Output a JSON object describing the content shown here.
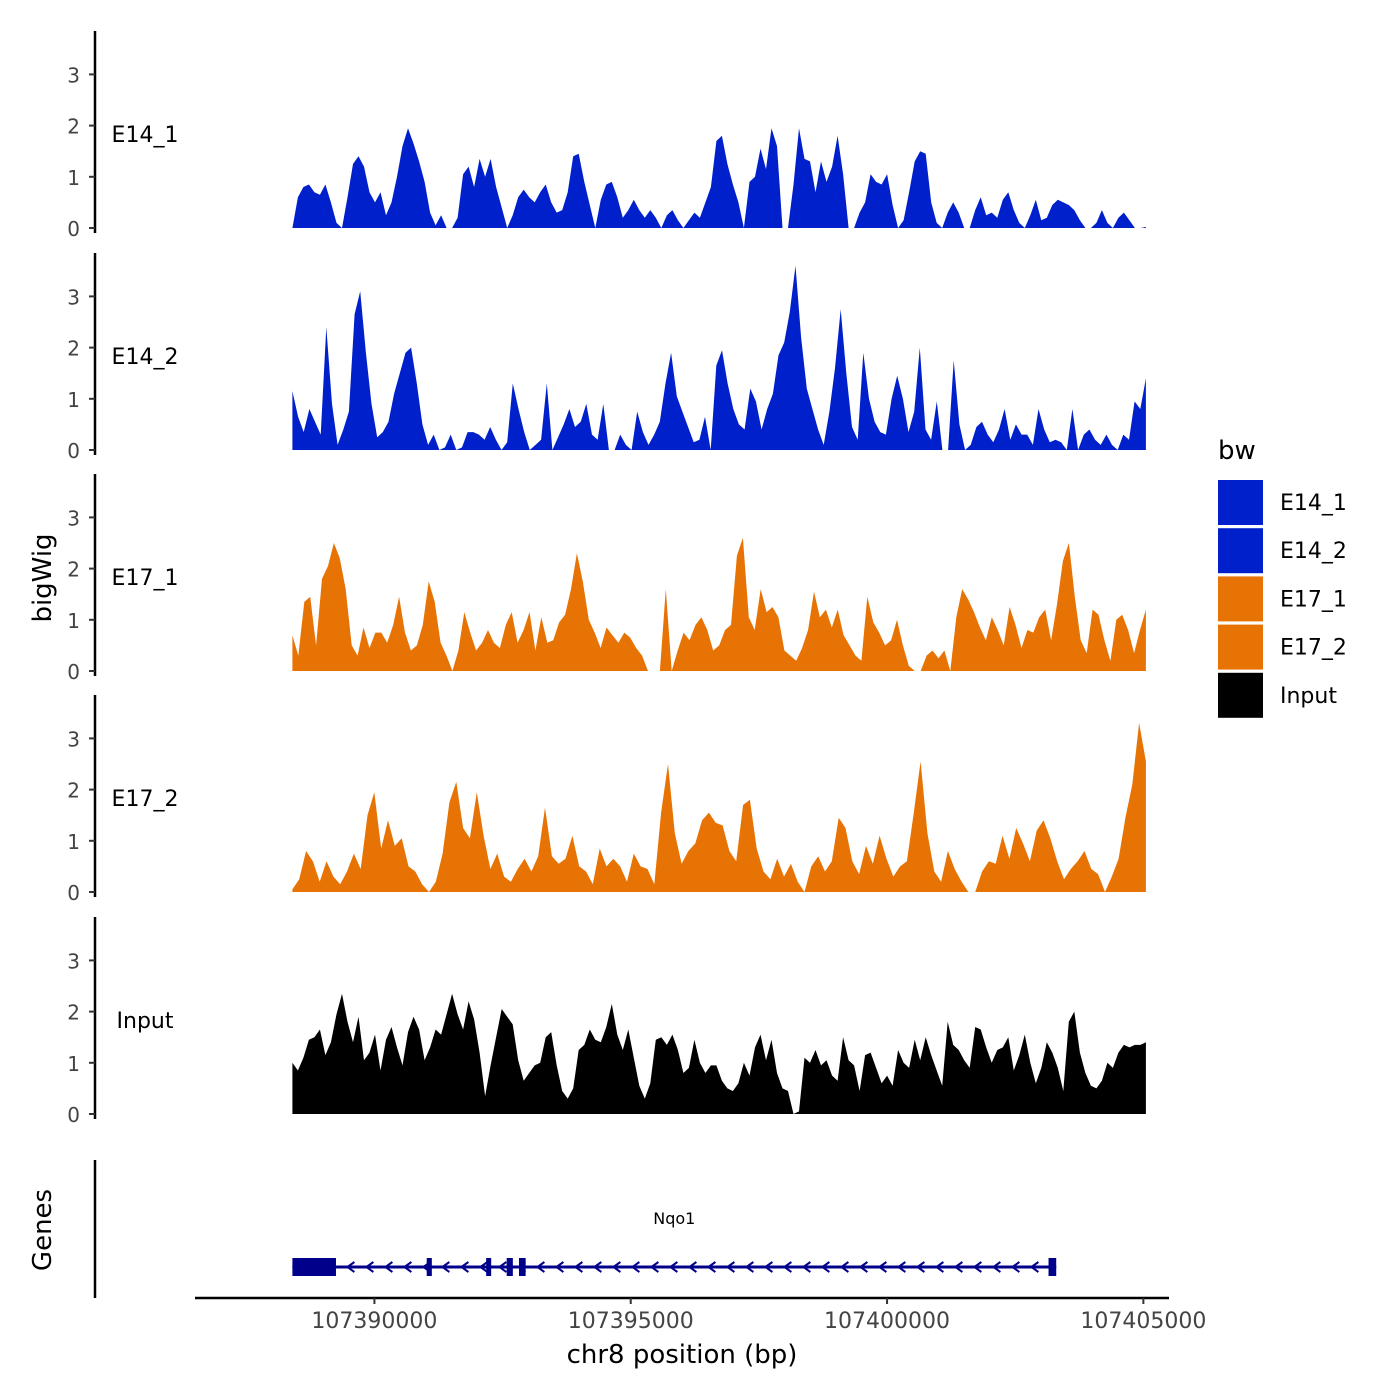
{
  "chart_data": {
    "type": "area",
    "chromosome": "chr8",
    "xlabel": "chr8 position (bp)",
    "ylabel": "bigWig",
    "genes_label": "Genes",
    "xlim": [
      107386500,
      107405500
    ],
    "ylim": [
      0,
      3.8
    ],
    "region": [
      107388400,
      107405050
    ],
    "x_ticks": [
      107390000,
      107395000,
      107400000,
      107405000
    ],
    "x_tick_labels": [
      "107390000",
      "107395000",
      "107400000",
      "107405000"
    ],
    "y_ticks": [
      0,
      1,
      2,
      3
    ],
    "y_tick_labels": [
      "0",
      "1",
      "2",
      "3"
    ],
    "legend": {
      "title": "bw",
      "position": "right",
      "entries": [
        {
          "label": "E14_1",
          "color": "#0020cc"
        },
        {
          "label": "E14_2",
          "color": "#0020cc"
        },
        {
          "label": "E17_1",
          "color": "#e87305"
        },
        {
          "label": "E17_2",
          "color": "#e87305"
        },
        {
          "label": "Input",
          "color": "#000000"
        }
      ]
    },
    "series": [
      {
        "name": "E14_1",
        "color": "#0020cc",
        "values": [
          0.0,
          0.6,
          0.8,
          0.85,
          0.7,
          0.65,
          0.85,
          0.5,
          0.1,
          0.0,
          0.6,
          1.25,
          1.4,
          1.2,
          0.7,
          0.5,
          0.7,
          0.25,
          0.5,
          1.0,
          1.6,
          1.95,
          1.65,
          1.3,
          0.9,
          0.3,
          0.05,
          0.25,
          0.0,
          0.0,
          0.2,
          1.05,
          1.2,
          0.8,
          1.35,
          1.0,
          1.35,
          0.8,
          0.4,
          0.0,
          0.25,
          0.6,
          0.75,
          0.6,
          0.5,
          0.7,
          0.85,
          0.5,
          0.3,
          0.35,
          0.7,
          1.4,
          1.45,
          0.9,
          0.45,
          0.0,
          0.55,
          0.85,
          0.9,
          0.6,
          0.2,
          0.35,
          0.55,
          0.35,
          0.2,
          0.35,
          0.2,
          0.0,
          0.25,
          0.35,
          0.15,
          0.0,
          0.15,
          0.3,
          0.2,
          0.5,
          0.8,
          1.7,
          1.8,
          1.25,
          0.85,
          0.5,
          0.0,
          0.9,
          1.0,
          1.55,
          1.15,
          1.95,
          1.6,
          0.0,
          0.0,
          0.85,
          1.95,
          1.35,
          1.3,
          0.7,
          1.3,
          0.9,
          1.2,
          1.8,
          1.05,
          0.0,
          0.0,
          0.3,
          0.5,
          1.05,
          0.9,
          0.85,
          1.05,
          0.45,
          0.0,
          0.15,
          0.7,
          1.3,
          1.5,
          1.45,
          0.5,
          0.1,
          0.0,
          0.3,
          0.5,
          0.3,
          0.0,
          0.0,
          0.35,
          0.6,
          0.25,
          0.3,
          0.2,
          0.55,
          0.7,
          0.35,
          0.1,
          0.0,
          0.25,
          0.55,
          0.15,
          0.2,
          0.45,
          0.55,
          0.5,
          0.45,
          0.35,
          0.15,
          0.0,
          0.0,
          0.1,
          0.35,
          0.1,
          0.0,
          0.2,
          0.3,
          0.15,
          0.0,
          0.0,
          0.02
        ]
      },
      {
        "name": "E14_2",
        "color": "#0020cc",
        "values": [
          1.15,
          0.65,
          0.35,
          0.8,
          0.55,
          0.3,
          2.4,
          0.9,
          0.1,
          0.4,
          0.75,
          2.65,
          3.1,
          1.9,
          0.9,
          0.25,
          0.35,
          0.55,
          1.1,
          1.5,
          1.9,
          2.0,
          1.3,
          0.5,
          0.1,
          0.3,
          0.0,
          0.05,
          0.3,
          0.0,
          0.05,
          0.35,
          0.35,
          0.3,
          0.2,
          0.45,
          0.2,
          0.0,
          0.15,
          1.3,
          0.8,
          0.35,
          0.0,
          0.1,
          0.2,
          1.3,
          0.0,
          0.25,
          0.5,
          0.8,
          0.45,
          0.55,
          0.9,
          0.3,
          0.2,
          0.9,
          0.0,
          0.0,
          0.3,
          0.1,
          0.0,
          0.75,
          0.35,
          0.1,
          0.3,
          0.55,
          1.3,
          1.9,
          1.05,
          0.75,
          0.45,
          0.15,
          0.2,
          0.65,
          0.0,
          1.65,
          1.95,
          1.3,
          0.8,
          0.5,
          0.4,
          1.2,
          0.95,
          0.4,
          0.8,
          1.1,
          1.85,
          2.1,
          2.7,
          3.6,
          2.2,
          1.2,
          0.8,
          0.4,
          0.1,
          0.75,
          1.6,
          2.75,
          1.5,
          0.45,
          0.2,
          1.9,
          1.0,
          0.55,
          0.35,
          0.3,
          1.0,
          1.45,
          1.0,
          0.35,
          0.75,
          2.0,
          0.4,
          0.2,
          0.95,
          0.0,
          0.0,
          1.75,
          0.5,
          0.0,
          0.1,
          0.45,
          0.55,
          0.3,
          0.15,
          0.4,
          0.8,
          0.2,
          0.5,
          0.3,
          0.3,
          0.1,
          0.8,
          0.4,
          0.15,
          0.2,
          0.15,
          0.0,
          0.8,
          0.0,
          0.3,
          0.4,
          0.2,
          0.1,
          0.3,
          0.1,
          0.0,
          0.3,
          0.2,
          0.95,
          0.8,
          1.4
        ]
      },
      {
        "name": "E17_1",
        "color": "#e87305",
        "values": [
          0.7,
          0.3,
          1.35,
          1.45,
          0.5,
          1.8,
          2.05,
          2.5,
          2.2,
          1.6,
          0.5,
          0.3,
          0.85,
          0.45,
          0.75,
          0.75,
          0.55,
          0.9,
          1.45,
          0.75,
          0.4,
          0.5,
          0.9,
          1.75,
          1.35,
          0.55,
          0.3,
          0.0,
          0.4,
          1.15,
          0.75,
          0.4,
          0.55,
          0.8,
          0.55,
          0.45,
          0.9,
          1.15,
          0.55,
          0.8,
          1.15,
          0.4,
          1.05,
          0.55,
          0.6,
          0.95,
          1.1,
          1.6,
          2.3,
          1.75,
          1.0,
          0.75,
          0.45,
          0.85,
          0.7,
          0.55,
          0.75,
          0.65,
          0.45,
          0.3,
          0.0,
          0.0,
          0.0,
          1.6,
          0.0,
          0.4,
          0.75,
          0.6,
          0.9,
          1.05,
          0.8,
          0.4,
          0.5,
          0.8,
          0.9,
          2.25,
          2.6,
          1.05,
          0.8,
          1.6,
          1.15,
          1.25,
          1.05,
          0.4,
          0.3,
          0.2,
          0.45,
          0.8,
          1.55,
          1.05,
          1.2,
          0.85,
          1.2,
          0.7,
          0.5,
          0.3,
          0.2,
          1.45,
          0.95,
          0.75,
          0.5,
          0.6,
          1.0,
          0.5,
          0.1,
          0.0,
          0.0,
          0.3,
          0.4,
          0.25,
          0.4,
          0.0,
          1.05,
          1.6,
          1.4,
          1.15,
          0.85,
          0.6,
          1.05,
          0.8,
          0.5,
          1.25,
          0.9,
          0.45,
          0.8,
          0.75,
          1.05,
          1.2,
          0.6,
          1.3,
          2.15,
          2.5,
          1.45,
          0.6,
          0.35,
          1.2,
          1.1,
          0.6,
          0.2,
          1.0,
          1.1,
          0.8,
          0.35,
          0.8,
          1.2
        ]
      },
      {
        "name": "E17_2",
        "color": "#e87305",
        "values": [
          0.05,
          0.25,
          0.8,
          0.6,
          0.2,
          0.6,
          0.3,
          0.15,
          0.4,
          0.75,
          0.45,
          1.5,
          1.95,
          0.85,
          1.4,
          0.9,
          1.05,
          0.5,
          0.4,
          0.15,
          0.0,
          0.2,
          0.75,
          1.75,
          2.15,
          1.25,
          1.05,
          1.95,
          1.1,
          0.45,
          0.75,
          0.3,
          0.2,
          0.45,
          0.65,
          0.4,
          0.7,
          1.65,
          0.7,
          0.55,
          0.65,
          1.1,
          0.5,
          0.4,
          0.15,
          0.85,
          0.5,
          0.65,
          0.5,
          0.2,
          0.75,
          0.5,
          0.45,
          0.15,
          1.55,
          2.5,
          1.15,
          0.55,
          0.8,
          0.95,
          1.4,
          1.55,
          1.35,
          1.3,
          0.8,
          0.6,
          1.7,
          1.8,
          0.85,
          0.4,
          0.25,
          0.65,
          0.3,
          0.55,
          0.2,
          0.0,
          0.5,
          0.7,
          0.4,
          0.6,
          1.45,
          1.25,
          0.6,
          0.35,
          0.9,
          0.55,
          1.1,
          0.65,
          0.3,
          0.5,
          0.6,
          1.55,
          2.55,
          1.15,
          0.4,
          0.2,
          0.8,
          0.45,
          0.2,
          0.0,
          0.0,
          0.4,
          0.6,
          0.55,
          1.1,
          0.65,
          1.25,
          0.95,
          0.6,
          1.2,
          1.4,
          1.05,
          0.6,
          0.25,
          0.45,
          0.6,
          0.8,
          0.45,
          0.35,
          0.0,
          0.3,
          0.65,
          1.45,
          2.1,
          3.3,
          2.55
        ]
      },
      {
        "name": "Input",
        "color": "#000000",
        "values": [
          1.0,
          0.85,
          1.1,
          1.45,
          1.5,
          1.65,
          1.15,
          1.4,
          1.95,
          2.35,
          1.8,
          1.4,
          1.9,
          1.05,
          1.2,
          1.55,
          0.85,
          1.45,
          1.7,
          1.3,
          0.95,
          1.6,
          1.9,
          1.65,
          1.05,
          1.3,
          1.65,
          1.55,
          1.95,
          2.35,
          1.95,
          1.65,
          2.2,
          1.85,
          1.2,
          0.35,
          0.95,
          1.5,
          2.05,
          1.9,
          1.75,
          1.05,
          0.65,
          0.8,
          0.95,
          1.0,
          1.5,
          1.6,
          0.95,
          0.45,
          0.3,
          0.5,
          1.25,
          1.35,
          1.65,
          1.45,
          1.4,
          1.7,
          2.15,
          1.55,
          1.25,
          1.65,
          1.1,
          0.55,
          0.3,
          0.6,
          1.45,
          1.5,
          1.35,
          1.55,
          1.25,
          0.8,
          0.9,
          1.45,
          1.0,
          0.8,
          0.95,
          0.95,
          0.65,
          0.5,
          0.45,
          0.6,
          1.0,
          0.75,
          1.3,
          1.55,
          1.05,
          1.45,
          0.8,
          0.5,
          0.45,
          0.0,
          0.05,
          1.1,
          1.0,
          1.25,
          0.95,
          1.05,
          0.75,
          0.65,
          1.5,
          1.05,
          0.95,
          0.45,
          1.15,
          1.2,
          0.9,
          0.6,
          0.75,
          0.55,
          1.25,
          1.0,
          0.9,
          1.45,
          1.05,
          1.5,
          1.15,
          0.85,
          0.55,
          1.8,
          1.35,
          1.25,
          1.05,
          0.9,
          1.7,
          1.65,
          1.3,
          1.0,
          1.25,
          1.3,
          1.5,
          0.85,
          1.15,
          1.55,
          1.0,
          0.6,
          0.9,
          1.4,
          1.2,
          0.9,
          0.45,
          1.8,
          2.0,
          1.2,
          0.8,
          0.55,
          0.5,
          0.65,
          1.0,
          0.9,
          1.2,
          1.35,
          1.3,
          1.35,
          1.35,
          1.4
        ]
      }
    ],
    "gene": {
      "name": "Nqo1",
      "strand": "-",
      "start": 107388400,
      "end": 107403300,
      "color": "#00008b",
      "exons": [
        [
          107388400,
          107389250
        ],
        [
          107391020,
          107391120
        ],
        [
          107392180,
          107392260
        ],
        [
          107392580,
          107392700
        ],
        [
          107392820,
          107392950
        ],
        [
          107403150,
          107403300
        ]
      ]
    }
  }
}
